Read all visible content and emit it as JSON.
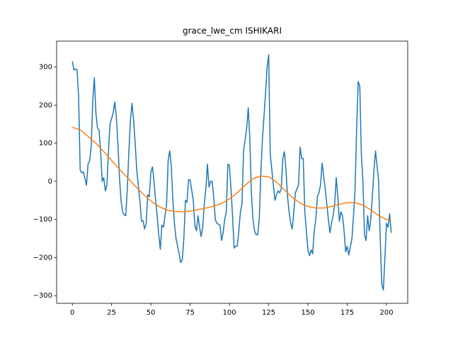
{
  "chart_data": {
    "type": "line",
    "title": "grace_lwe_cm ISHIKARI",
    "xlim": [
      -10,
      213.5
    ],
    "ylim": [
      -320,
      368
    ],
    "xticks": [
      0,
      25,
      50,
      75,
      100,
      125,
      150,
      175,
      200
    ],
    "yticks": [
      {
        "value": -300,
        "label": "−300"
      },
      {
        "value": -200,
        "label": "−200"
      },
      {
        "value": -100,
        "label": "−100"
      },
      0,
      100,
      200,
      300
    ],
    "series": [
      {
        "color": "#1f77b4",
        "x": [
          0,
          1,
          2,
          3,
          4,
          5,
          6,
          7,
          9,
          10,
          11,
          12,
          13,
          14,
          15,
          16,
          17,
          18,
          19,
          20,
          21,
          22,
          23,
          24,
          26,
          27,
          28,
          29,
          30,
          31,
          32,
          33,
          34,
          35,
          36,
          37,
          38,
          39,
          40,
          41,
          43,
          44,
          45,
          46,
          47,
          48,
          49,
          50,
          51,
          52,
          53,
          54,
          55,
          56,
          57,
          58,
          60,
          61,
          62,
          63,
          64,
          65,
          66,
          67,
          68,
          69,
          70,
          71,
          72,
          73,
          74,
          75,
          77,
          78,
          79,
          80,
          81,
          82,
          83,
          84,
          85,
          86,
          87,
          88,
          89,
          90,
          91,
          92,
          94,
          95,
          96,
          97,
          98,
          99,
          100,
          101,
          102,
          103,
          104,
          105,
          106,
          107,
          108,
          109,
          111,
          112,
          113,
          114,
          115,
          116,
          117,
          118,
          119,
          120,
          121,
          122,
          123,
          124,
          125,
          126,
          128,
          129,
          130,
          131,
          132,
          133,
          134,
          135,
          136,
          137,
          138,
          139,
          140,
          141,
          142,
          144,
          145,
          146,
          147,
          148,
          149,
          150,
          151,
          152,
          153,
          154,
          155,
          156,
          157,
          158,
          159,
          161,
          162,
          163,
          164,
          165,
          166,
          167,
          168,
          169,
          170,
          171,
          172,
          173,
          174,
          175,
          176,
          178,
          179,
          180,
          181,
          182,
          183,
          184,
          185,
          186,
          187,
          188,
          189,
          190,
          191,
          192,
          193,
          195,
          196,
          197,
          198,
          199,
          200,
          201,
          202,
          203
        ],
        "values": [
          315,
          292,
          295,
          293,
          220,
          30,
          22,
          25,
          -10,
          45,
          55,
          90,
          210,
          272,
          180,
          140,
          135,
          80,
          0,
          10,
          -25,
          -10,
          80,
          150,
          180,
          208,
          170,
          100,
          10,
          -50,
          -80,
          -88,
          -90,
          -20,
          80,
          160,
          205,
          160,
          100,
          30,
          -50,
          -105,
          -103,
          -125,
          -110,
          -35,
          -40,
          25,
          38,
          0,
          -50,
          -90,
          -140,
          -178,
          -115,
          -120,
          -60,
          55,
          80,
          40,
          -50,
          -110,
          -150,
          -170,
          -190,
          -213,
          -205,
          -150,
          -50,
          -55,
          5,
          3,
          -50,
          -115,
          -130,
          -90,
          -120,
          -145,
          -120,
          -60,
          -20,
          45,
          -15,
          0,
          0,
          -40,
          -100,
          -110,
          -115,
          -155,
          -135,
          -100,
          -80,
          45,
          43,
          -20,
          -90,
          -175,
          -170,
          -170,
          -130,
          -80,
          -60,
          80,
          140,
          193,
          110,
          -30,
          -100,
          -130,
          -140,
          -140,
          -100,
          20,
          110,
          170,
          230,
          300,
          332,
          70,
          -10,
          -50,
          -35,
          -25,
          -30,
          -20,
          60,
          78,
          30,
          -40,
          -80,
          -110,
          -125,
          -80,
          -30,
          -10,
          90,
          60,
          60,
          -80,
          -130,
          -180,
          -195,
          -180,
          -190,
          -130,
          -100,
          -40,
          -30,
          -10,
          48,
          -20,
          -60,
          -100,
          -135,
          -110,
          -90,
          -60,
          10,
          -40,
          -105,
          -80,
          -90,
          -130,
          -185,
          -170,
          -193,
          -150,
          -90,
          -20,
          140,
          262,
          250,
          70,
          0,
          -140,
          -155,
          -90,
          -130,
          -100,
          -40,
          30,
          80,
          0,
          -150,
          -270,
          -285,
          -200,
          -110,
          -120,
          -85,
          -135
        ]
      },
      {
        "color": "#ff7f0e",
        "x": [
          0,
          5,
          10,
          15,
          20,
          25,
          30,
          35,
          40,
          45,
          50,
          55,
          60,
          65,
          70,
          75,
          80,
          85,
          90,
          95,
          100,
          105,
          110,
          115,
          120,
          125,
          130,
          135,
          140,
          145,
          150,
          155,
          160,
          165,
          170,
          175,
          180,
          185,
          190,
          195,
          200,
          203
        ],
        "values": [
          142,
          135,
          118,
          100,
          78,
          55,
          32,
          10,
          -12,
          -33,
          -52,
          -66,
          -75,
          -79,
          -80,
          -78,
          -74,
          -70,
          -65,
          -58,
          -46,
          -30,
          -10,
          7,
          14,
          12,
          -2,
          -22,
          -42,
          -57,
          -66,
          -70,
          -70,
          -66,
          -60,
          -56,
          -56,
          -62,
          -75,
          -90,
          -100,
          -103
        ]
      }
    ]
  }
}
